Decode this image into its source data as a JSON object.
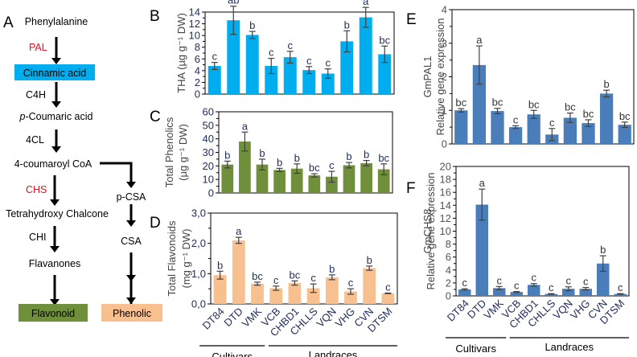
{
  "figure": {
    "panel_letters": [
      "A",
      "B",
      "C",
      "D",
      "E",
      "F"
    ]
  },
  "pathway": {
    "left_column": [
      {
        "type": "node",
        "text": "Phenylalanine"
      },
      {
        "type": "enzyme",
        "text": "PAL",
        "highlight": true
      },
      {
        "type": "box",
        "text": "Cinnamic acid",
        "color": "#00AEEF"
      },
      {
        "type": "enzyme",
        "text": "C4H",
        "highlight": false
      },
      {
        "type": "node",
        "text": "p-Coumaric acid",
        "italic_prefix": "p"
      },
      {
        "type": "enzyme",
        "text": "4CL",
        "highlight": false
      },
      {
        "type": "node",
        "text": "4-coumaroyl CoA"
      },
      {
        "type": "enzyme",
        "text": "CHS",
        "highlight": true
      },
      {
        "type": "node",
        "text": "Tetrahydroxy Chalcone"
      },
      {
        "type": "enzyme",
        "text": "CHI",
        "highlight": false
      },
      {
        "type": "node",
        "text": "Flavanones"
      },
      {
        "type": "box",
        "text": "Flavonoid",
        "color": "#6F8F3A"
      }
    ],
    "right_column": [
      {
        "type": "node",
        "text": "p-CSA"
      },
      {
        "type": "node",
        "text": "CSA"
      },
      {
        "type": "box",
        "text": "Phenolic",
        "color": "#F8BF8F"
      }
    ],
    "enzyme_highlight_color": "#E8101E"
  },
  "groups": {
    "cultivars": "Cultivars",
    "landraces": "Landraces"
  },
  "chart_data": [
    {
      "panel": "B",
      "type": "bar",
      "title": "",
      "ylabel": "THA (µg g⁻¹ DW)",
      "xlabel": "",
      "categories": [
        "DT84",
        "DTD",
        "VMK",
        "VCB",
        "CHBD1",
        "CHLLS",
        "VQN",
        "VHG",
        "CVN",
        "DTSM"
      ],
      "values": [
        4.8,
        12.6,
        10.1,
        4.8,
        6.3,
        4.1,
        3.5,
        9.0,
        13.1,
        6.8
      ],
      "errors": [
        0.6,
        2.4,
        0.6,
        1.3,
        1.0,
        0.6,
        0.8,
        1.8,
        1.7,
        1.4
      ],
      "letters": [
        "c",
        "ab",
        "b",
        "c",
        "c",
        "c",
        "c",
        "b",
        "a",
        "bc"
      ],
      "ylim": [
        0,
        14
      ],
      "yticks": [
        "0",
        "2",
        "4",
        "6",
        "8",
        "10",
        "12",
        "14"
      ],
      "color": "#00AEEF",
      "show_xticklabels": false
    },
    {
      "panel": "C",
      "type": "bar",
      "title": "",
      "ylabel": "Total Phenolics (µg g⁻¹ DW)",
      "ylabel_lines": [
        "Total Phenolics",
        "(µg g⁻¹ DW)"
      ],
      "xlabel": "",
      "categories": [
        "DT84",
        "DTD",
        "VMK",
        "VCB",
        "CHBD1",
        "CHLLS",
        "VQN",
        "VHG",
        "CVN",
        "DTSM"
      ],
      "values": [
        21,
        38,
        21,
        17,
        18,
        13,
        12,
        20.5,
        22,
        17.5
      ],
      "errors": [
        2.5,
        7,
        4,
        1.2,
        3.5,
        1.2,
        4,
        2,
        2,
        4
      ],
      "letters": [
        "b",
        "a",
        "b",
        "b",
        "b",
        "bc",
        "c",
        "b",
        "b",
        "bc"
      ],
      "ylim": [
        0,
        60
      ],
      "yticks": [
        "0",
        "10",
        "20",
        "30",
        "40",
        "50",
        "60"
      ],
      "color": "#6F8F3A",
      "show_xticklabels": false
    },
    {
      "panel": "D",
      "type": "bar",
      "title": "",
      "ylabel": "Total Flavonoids (mg g⁻¹ DW)",
      "ylabel_lines": [
        "Total Flavonoids",
        "(mg g⁻¹ DW)"
      ],
      "xlabel": "",
      "categories": [
        "DT84",
        "DTD",
        "VMK",
        "VCB",
        "CHBD1",
        "CHLLS",
        "VQN",
        "VHG",
        "CVN",
        "DTSM"
      ],
      "values": [
        0.95,
        2.1,
        0.67,
        0.52,
        0.69,
        0.52,
        0.88,
        0.41,
        1.18,
        0.35
      ],
      "errors": [
        0.13,
        0.1,
        0.05,
        0.07,
        0.07,
        0.14,
        0.08,
        0.09,
        0.07,
        0.01
      ],
      "letters": [
        "b",
        "a",
        "bc",
        "c",
        "bc",
        "c",
        "b",
        "c",
        "b",
        "c"
      ],
      "ylim": [
        0,
        3.0
      ],
      "yticks": [
        "0,0",
        "1,0",
        "2,0",
        "3,0"
      ],
      "color": "#F8BF8F",
      "show_xticklabels": true
    },
    {
      "panel": "E",
      "type": "bar",
      "title": "",
      "ylabel": "Relative gene expression",
      "gene_label": "GmPAL1",
      "xlabel": "",
      "categories": [
        "DT84",
        "DTD",
        "VMK",
        "VCB",
        "CHBD1",
        "CHLLS",
        "VQN",
        "VHG",
        "CVN",
        "DTSM"
      ],
      "values": [
        1.0,
        2.35,
        0.98,
        0.5,
        0.88,
        0.28,
        0.78,
        0.62,
        1.5,
        0.57
      ],
      "errors": [
        0.05,
        0.57,
        0.08,
        0.04,
        0.12,
        0.18,
        0.14,
        0.1,
        0.1,
        0.08
      ],
      "letters": [
        "bc",
        "a",
        "bc",
        "c",
        "bc",
        "c",
        "bc",
        "bc",
        "b",
        "bc"
      ],
      "ylim": [
        0,
        4
      ],
      "yticks": [
        "0",
        "1",
        "2",
        "3",
        "4"
      ],
      "color": "#4A7EBB",
      "show_xticklabels": false
    },
    {
      "panel": "F",
      "type": "bar",
      "title": "",
      "ylabel": "Relative gene expression",
      "gene_label": "GmCHS8",
      "xlabel": "",
      "categories": [
        "DT84",
        "DTD",
        "VMK",
        "VCB",
        "CHBD1",
        "CHLLS",
        "VQN",
        "VHG",
        "CVN",
        "DTSM"
      ],
      "values": [
        1.0,
        14.1,
        1.2,
        0.6,
        1.7,
        0.3,
        1.1,
        1.1,
        5.0,
        0.3
      ],
      "errors": [
        0.1,
        2.4,
        0.25,
        0.08,
        0.2,
        0.05,
        0.3,
        0.2,
        1.2,
        0.05
      ],
      "letters": [
        "c",
        "a",
        "c",
        "c",
        "c",
        "c",
        "c",
        "c",
        "b",
        "c"
      ],
      "ylim": [
        0,
        20
      ],
      "yticks": [
        "0",
        "2",
        "4",
        "6",
        "8",
        "10",
        "12",
        "14",
        "16",
        "18",
        "20"
      ],
      "color": "#4A7EBB",
      "show_xticklabels": true
    }
  ]
}
